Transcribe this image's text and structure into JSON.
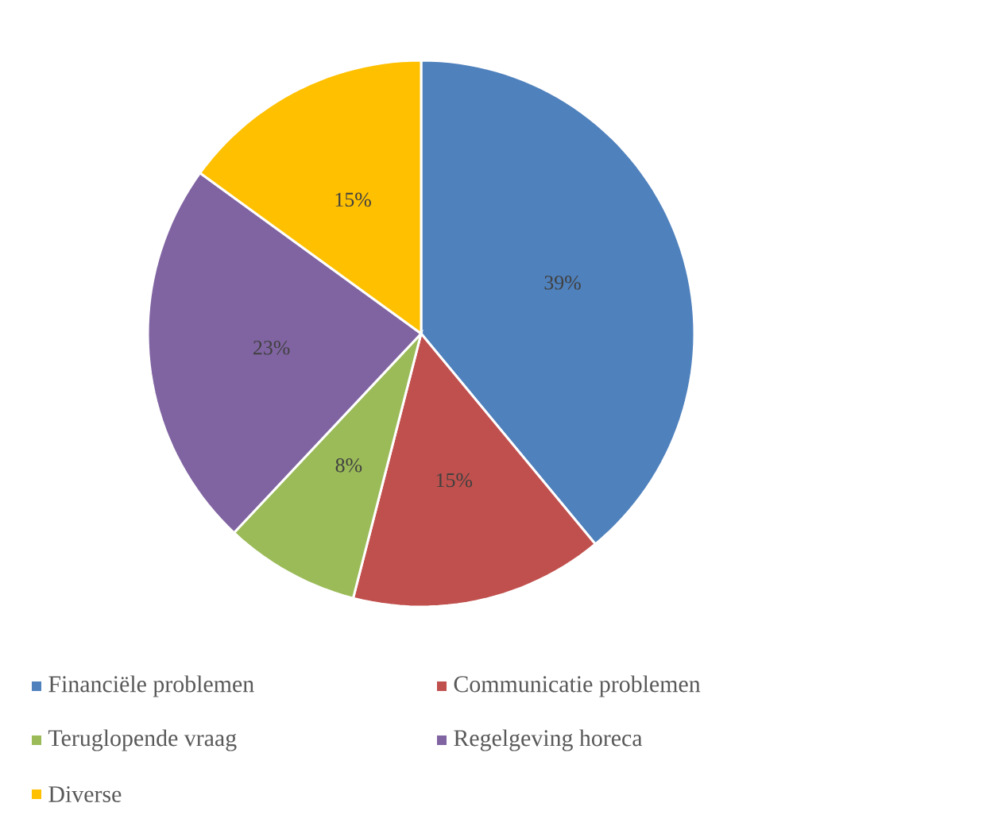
{
  "chart_data": {
    "type": "pie",
    "categories": [
      "Financiële problemen",
      "Communicatie problemen",
      "Teruglopende vraag",
      "Regelgeving horeca",
      "Diverse"
    ],
    "values": [
      39,
      15,
      8,
      23,
      15
    ],
    "value_labels": [
      "39%",
      "15%",
      "8%",
      "23%",
      "15%"
    ],
    "colors": [
      "#4f81bd",
      "#c0504d",
      "#9bbb59",
      "#8064a2",
      "#ffc000"
    ],
    "legend": "bottom"
  }
}
